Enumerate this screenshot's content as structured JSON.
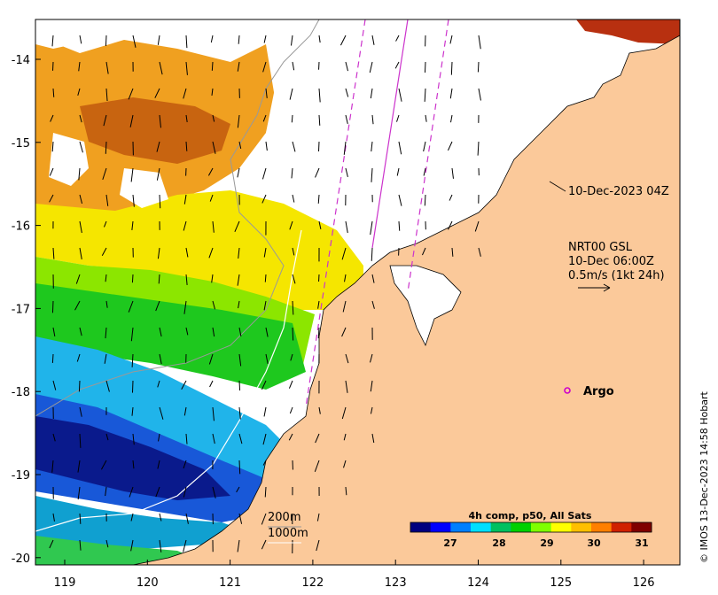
{
  "map": {
    "lon_ticks": [
      "119",
      "120",
      "121",
      "122",
      "123",
      "124",
      "125",
      "126"
    ],
    "lat_ticks": [
      "-14",
      "-15",
      "-16",
      "-17",
      "-18",
      "-19",
      "-20"
    ],
    "colors": {
      "land": "#fbc99a",
      "sst_cold": "#0a1a8c",
      "sst_hot": "#b30f0f",
      "track": "#cc33cc",
      "isobath_200": "#999999",
      "isobath_1000": "#ffffff"
    }
  },
  "annotations": {
    "pass_time": "10-Dec-2023 04Z",
    "gsl_line1": "NRT00 GSL",
    "gsl_line2": "10-Dec 06:00Z",
    "gsl_line3": "0.5m/s (1kt 24h)",
    "argo": "Argo",
    "isobath_200": "200m",
    "isobath_1000": "1000m",
    "credit": "© IMOS 13-Dec-2023 14:58 Hobart"
  },
  "colorbar": {
    "title": "4h comp, p50, All Sats",
    "ticks": [
      "27",
      "28",
      "29",
      "30",
      "31"
    ],
    "stops": [
      "#00007f",
      "#0000ff",
      "#007fff",
      "#00dfff",
      "#00c060",
      "#00d000",
      "#7fff00",
      "#ffff00",
      "#ffbf00",
      "#ff7f00",
      "#d02000",
      "#800000"
    ]
  },
  "icons": [
    "current-vector-arrow-icon",
    "argo-float-marker-icon"
  ]
}
